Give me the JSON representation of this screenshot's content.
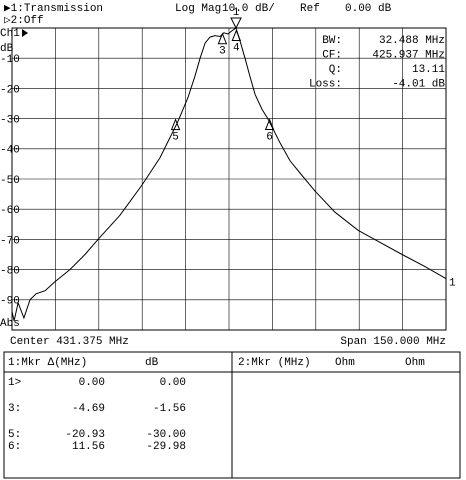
{
  "header": {
    "trace1": "▶1:Transmission",
    "format": "Log Mag",
    "scale": "10.0 dB/",
    "ref_label": "Ref",
    "ref_value": "0.00 dB",
    "trace2": "▷2:Off"
  },
  "chart_data": {
    "type": "line",
    "channel": "Ch1",
    "ylabel": "dB",
    "scale_label": "Abs",
    "trace_label": "1",
    "color": "#000000",
    "x": [
      356.4,
      357.1,
      358.5,
      360.5,
      362.6,
      364.7,
      367.8,
      371.2,
      376.4,
      381.6,
      386.1,
      393.7,
      401.3,
      407.5,
      413.7,
      417.2,
      419.6,
      421.4,
      423.1,
      424.8,
      426.5,
      428.3,
      429.6,
      431.0,
      432.3,
      433.8,
      435.1,
      436.9,
      438.6,
      440.4,
      442.8,
      444.8,
      449.0,
      452.5,
      455.9,
      461.1,
      468.0,
      476.0,
      483.6,
      491.2,
      499.1,
      506.4
    ],
    "values": [
      -94,
      -97,
      -91,
      -96,
      -90,
      -88,
      -87,
      -84,
      -80,
      -75,
      -70,
      -62,
      -52,
      -43,
      -31,
      -23,
      -16,
      -10,
      -5,
      -3,
      -2.5,
      -2.8,
      -1.6,
      -2,
      -1,
      0,
      -4,
      -10,
      -16,
      -22,
      -27,
      -30,
      -38,
      -44,
      -48,
      -54,
      -61,
      -67,
      -71,
      -75,
      -79,
      -83
    ],
    "xlim": [
      356.375,
      506.375
    ],
    "xticks": [
      371.375,
      386.375,
      401.375,
      416.375,
      431.375,
      446.375,
      461.375,
      476.375,
      491.375
    ],
    "ylim": [
      -100,
      0
    ],
    "yticks": [
      -90,
      -80,
      -70,
      -60,
      -50,
      -40,
      -30,
      -20,
      -10
    ],
    "grid": true,
    "markers": [
      {
        "label": "1",
        "x": 433.8,
        "y": 0,
        "symbol": "down"
      },
      {
        "label": "3",
        "x": 429.1,
        "y": -1.56,
        "symbol": "up"
      },
      {
        "label": "4",
        "x": 433.9,
        "y": -0.5,
        "symbol": "up"
      },
      {
        "label": "5",
        "x": 412.9,
        "y": -30,
        "symbol": "up"
      },
      {
        "label": "6",
        "x": 445.4,
        "y": -29.98,
        "symbol": "up"
      }
    ]
  },
  "info": [
    {
      "label": "BW:",
      "value": "32.488 MHz"
    },
    {
      "label": "CF:",
      "value": "425.937 MHz"
    },
    {
      "label": "Q:",
      "value": "13.11"
    },
    {
      "label": "Loss:",
      "value": "-4.01 dB"
    }
  ],
  "footer": {
    "center": "Center 431.375 MHz",
    "span": "Span 150.000 MHz"
  },
  "marker_table": {
    "left_header": [
      "1:Mkr Δ(MHz)",
      "dB"
    ],
    "right_header": [
      "2:Mkr (MHz)",
      "Ohm",
      "Ohm"
    ],
    "rows": [
      [
        "1>",
        "0.00",
        "0.00"
      ],
      [
        "3:",
        "-4.69",
        "-1.56"
      ],
      [
        "5:",
        "-20.93",
        "-30.00"
      ],
      [
        "6:",
        "11.56",
        "-29.98"
      ]
    ]
  }
}
